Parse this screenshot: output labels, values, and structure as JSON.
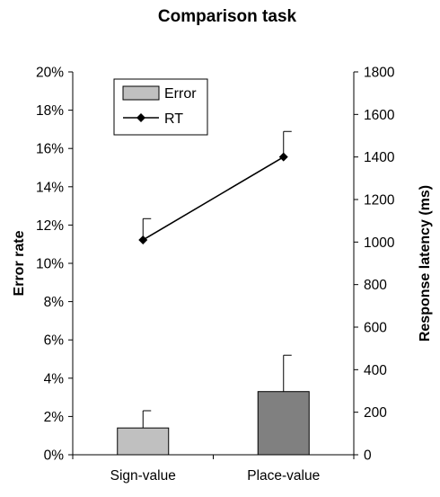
{
  "chart_data": {
    "type": "bar",
    "title": "Comparison task",
    "categories": [
      "Sign-value",
      "Place-value"
    ],
    "ylabel": "Error rate",
    "y2label": "Response latency (ms)",
    "ylim": [
      0,
      20
    ],
    "y_ticks": [
      "0%",
      "2%",
      "4%",
      "6%",
      "8%",
      "10%",
      "12%",
      "14%",
      "16%",
      "18%",
      "20%"
    ],
    "y2lim": [
      0,
      1800
    ],
    "y2_ticks": [
      "0",
      "200",
      "400",
      "600",
      "800",
      "1000",
      "1200",
      "1400",
      "1600",
      "1800"
    ],
    "legend_position": "top-left",
    "grid": false,
    "series": [
      {
        "name": "Error",
        "type": "bar",
        "axis": "left",
        "unit": "%",
        "values": [
          1.4,
          3.3
        ],
        "error": [
          0.9,
          1.9
        ],
        "colors": [
          "#c0c0c0",
          "#808080"
        ]
      },
      {
        "name": "RT",
        "type": "line",
        "axis": "right",
        "unit": "ms",
        "values": [
          1010,
          1400
        ],
        "error": [
          100,
          120
        ],
        "color": "#000000",
        "marker": "diamond"
      }
    ]
  }
}
